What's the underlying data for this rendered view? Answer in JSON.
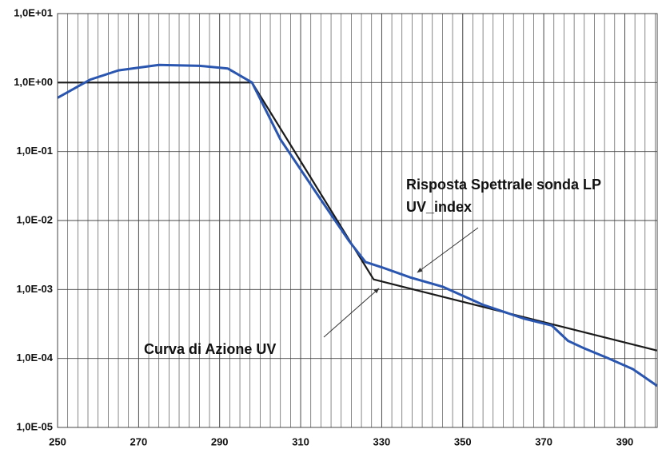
{
  "chart_data": {
    "type": "line",
    "log_y": true,
    "grid": true,
    "xlim": [
      250,
      398
    ],
    "xticks": [
      250,
      270,
      290,
      310,
      330,
      350,
      370,
      390
    ],
    "ylim": [
      1e-05,
      10
    ],
    "yticks": [
      {
        "value": 1e-05,
        "label": "1,0E-05"
      },
      {
        "value": 0.0001,
        "label": "1,0E-04"
      },
      {
        "value": 0.001,
        "label": "1,0E-03"
      },
      {
        "value": 0.01,
        "label": "1,0E-02"
      },
      {
        "value": 0.1,
        "label": "1,0E-01"
      },
      {
        "value": 1,
        "label": "1,0E+00"
      },
      {
        "value": 10,
        "label": "1,0E+01"
      }
    ],
    "series": [
      {
        "color": "#1a1a1a",
        "x": [
          250,
          298,
          328,
          398
        ],
        "values": [
          1,
          1,
          0.0014,
          0.00013
        ]
      },
      {
        "color": "#2a56b0",
        "x": [
          250,
          258,
          265,
          275,
          285,
          292,
          298,
          305,
          315,
          322,
          326,
          330,
          337,
          345,
          355,
          365,
          372,
          376,
          380,
          386,
          392,
          398
        ],
        "values": [
          0.6,
          1.1,
          1.5,
          1.8,
          1.75,
          1.6,
          1.0,
          0.15,
          0.02,
          0.005,
          0.0025,
          0.0021,
          0.0015,
          0.0011,
          0.0006,
          0.00038,
          0.0003,
          0.00018,
          0.00014,
          0.0001,
          7e-05,
          4e-05
        ]
      }
    ],
    "annotations": [
      {
        "text": "Risposta Spettrale sonda LP",
        "color": "#2a56b0"
      },
      {
        "text": "UV_index",
        "color": "#2a56b0"
      },
      {
        "text": "Curva di Azione UV",
        "color": "#111111"
      }
    ]
  }
}
